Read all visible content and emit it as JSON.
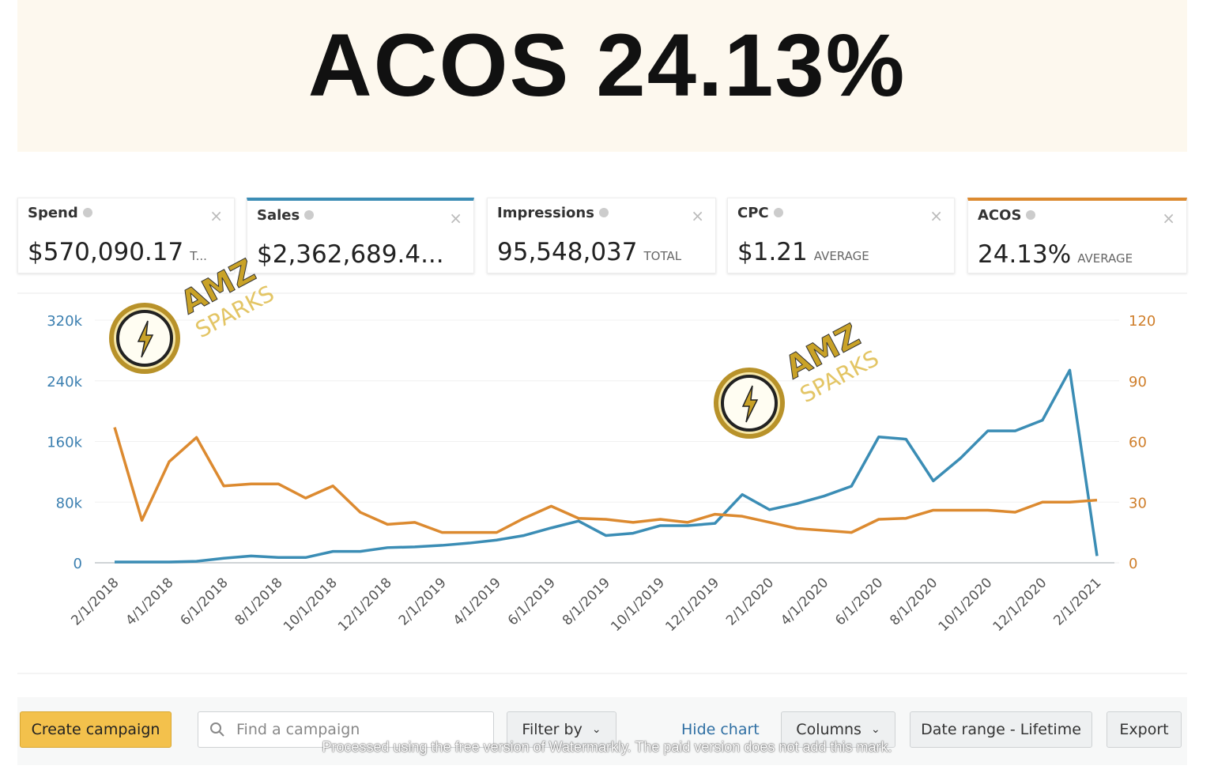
{
  "header": {
    "title": "ACOS 24.13%"
  },
  "metrics": [
    {
      "label": "Spend",
      "value": "$570,090.17",
      "note": "T..."
    },
    {
      "label": "Sales",
      "value": "$2,362,689.4..."
    },
    {
      "label": "Impressions",
      "value": "95,548,037",
      "note": "TOTAL"
    },
    {
      "label": "CPC",
      "value": "$1.21",
      "note": "AVERAGE"
    },
    {
      "label": "ACOS",
      "value": "24.13%",
      "note": "AVERAGE"
    }
  ],
  "chart_data": {
    "type": "line",
    "categories": [
      "2/1/2018",
      null,
      "4/1/2018",
      null,
      "6/1/2018",
      null,
      "8/1/2018",
      null,
      "10/1/2018",
      null,
      "12/1/2018",
      null,
      "2/1/2019",
      null,
      "4/1/2019",
      null,
      "6/1/2019",
      null,
      "8/1/2019",
      null,
      "10/1/2019",
      null,
      "12/1/2019",
      null,
      "2/1/2020",
      null,
      "4/1/2020",
      null,
      "6/1/2020",
      null,
      "8/1/2020",
      null,
      "10/1/2020",
      null,
      "12/1/2020",
      null,
      "2/1/2021"
    ],
    "series": [
      {
        "color": "#3b8db5",
        "values": [
          1000,
          1000,
          1000,
          2000,
          6000,
          9000,
          7000,
          7000,
          15000,
          15000,
          20000,
          21000,
          23000,
          26000,
          30000,
          36000,
          46000,
          55000,
          36000,
          39000,
          49000,
          49000,
          52000,
          90000,
          70000,
          78000,
          88000,
          101000,
          166000,
          163000,
          108000,
          138000,
          174000,
          174000,
          188000,
          254000,
          9000
        ]
      },
      {
        "color": "#dc8a30",
        "axis": "y2",
        "values": [
          67,
          21,
          50,
          62,
          38,
          39,
          39,
          32,
          38,
          25,
          19,
          20,
          15,
          15,
          15,
          22,
          28,
          22,
          21.5,
          20,
          21.5,
          20,
          24,
          23,
          20,
          17,
          16,
          15,
          21.5,
          22,
          26,
          26,
          26,
          25,
          30,
          30,
          31
        ]
      }
    ],
    "ylim": [
      0,
      320000
    ],
    "yticks": [
      0,
      {
        "value": 80000,
        "label": "80k"
      },
      {
        "value": 160000,
        "label": "160k"
      },
      {
        "value": 240000,
        "label": "240k"
      },
      {
        "value": 320000,
        "label": "320k"
      }
    ],
    "y2lim": [
      0,
      120
    ],
    "y2ticks": [
      0,
      30,
      60,
      90,
      120
    ],
    "grid": true
  },
  "toolbar": {
    "create": "Create campaign",
    "search": "Find a campaign",
    "filter": "Filter by",
    "hide": "Hide chart",
    "columns": "Columns",
    "date": "Date range - Lifetime",
    "export": "Export"
  },
  "watermark": {
    "logos": [
      {
        "top": "AMZ",
        "bottom": "SPARKS"
      },
      {
        "top": "AMZ",
        "bottom": "SPARKS"
      }
    ],
    "notice": "Processed using the free version of Watermarkly. The paid version does not add this mark."
  }
}
